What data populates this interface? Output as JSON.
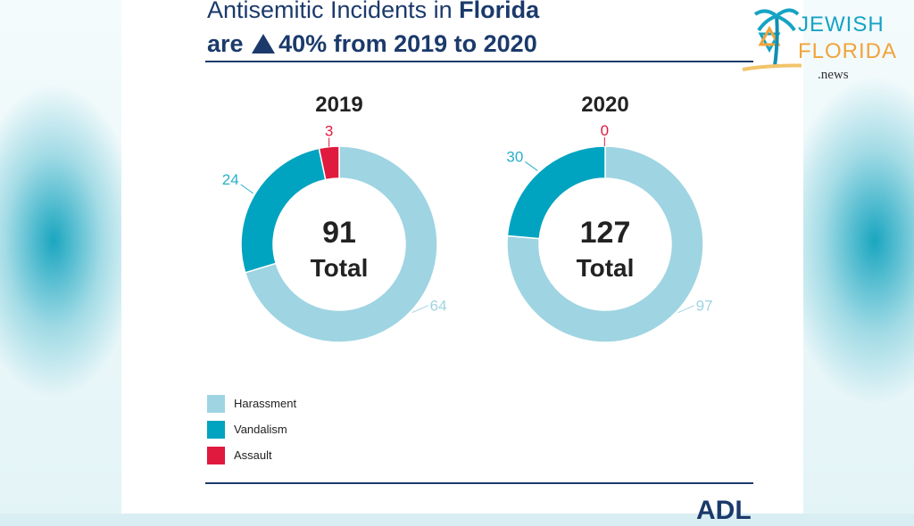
{
  "title": {
    "line1_prefix": "Antisemitic Incidents in ",
    "line1_bold": "Florida",
    "line2_prefix": "are",
    "line2_bold": "40% from 2019 to 2020"
  },
  "logo": {
    "word1": "JEWISH",
    "word2": "FLORIDA",
    "word3": ".news"
  },
  "footer_logo": "ADL",
  "colors": {
    "harassment": "#9fd4e2",
    "vandalism": "#00a3c0",
    "assault": "#e0193f",
    "title": "#1b3a6b"
  },
  "chart_data": [
    {
      "type": "pie",
      "title": "2019",
      "center_value": "91",
      "center_label": "Total",
      "categories": [
        "Harassment",
        "Vandalism",
        "Assault"
      ],
      "values": [
        64,
        24,
        3
      ],
      "labels": [
        "64",
        "24",
        "3"
      ]
    },
    {
      "type": "pie",
      "title": "2020",
      "center_value": "127",
      "center_label": "Total",
      "categories": [
        "Harassment",
        "Vandalism",
        "Assault"
      ],
      "values": [
        97,
        30,
        0
      ],
      "labels": [
        "97",
        "30",
        "0"
      ]
    }
  ],
  "legend": [
    {
      "label": "Harassment",
      "color": "#9fd4e2"
    },
    {
      "label": "Vandalism",
      "color": "#00a3c0"
    },
    {
      "label": "Assault",
      "color": "#e0193f"
    }
  ]
}
